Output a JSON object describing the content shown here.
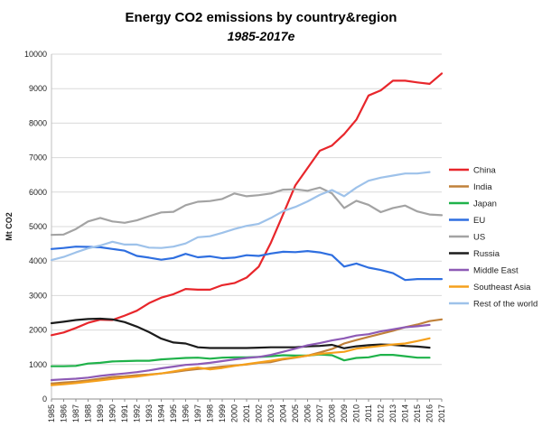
{
  "chart_data": {
    "type": "line",
    "title": "Energy CO2 emissions by country&region",
    "subtitle": "1985-2017e",
    "xlabel": "",
    "ylabel": "Mt CO2",
    "ylim": [
      0,
      10000
    ],
    "yticks": [
      0,
      1000,
      2000,
      3000,
      4000,
      5000,
      6000,
      7000,
      8000,
      9000,
      10000
    ],
    "grid": true,
    "legend_position": "right",
    "x": [
      "1985",
      "1986",
      "1987",
      "1988",
      "1989",
      "1990",
      "1991",
      "1992",
      "1993",
      "1994",
      "1995",
      "1996",
      "1997",
      "1998",
      "1999",
      "2000",
      "2001",
      "2002",
      "2003",
      "2004",
      "2005",
      "2006",
      "2007",
      "2008",
      "2009",
      "2010",
      "2011",
      "2012",
      "2013",
      "2014",
      "2015",
      "2016",
      "2017"
    ],
    "series": [
      {
        "name": "China",
        "color": "#e8262b",
        "values": [
          1850,
          1930,
          2060,
          2210,
          2300,
          2290,
          2420,
          2560,
          2780,
          2940,
          3040,
          3190,
          3170,
          3170,
          3300,
          3360,
          3520,
          3840,
          4540,
          5360,
          6200,
          6700,
          7200,
          7350,
          7680,
          8100,
          8800,
          8950,
          9230,
          9230,
          9180,
          9140,
          9440
        ]
      },
      {
        "name": "India",
        "color": "#c0813a",
        "values": [
          450,
          480,
          500,
          540,
          590,
          640,
          660,
          690,
          710,
          740,
          780,
          830,
          870,
          900,
          940,
          970,
          1000,
          1050,
          1070,
          1150,
          1200,
          1260,
          1350,
          1450,
          1610,
          1710,
          1800,
          1890,
          1980,
          2080,
          2160,
          2260,
          2310
        ]
      },
      {
        "name": "Japan",
        "color": "#1fb24a",
        "values": [
          950,
          950,
          960,
          1030,
          1050,
          1090,
          1100,
          1110,
          1110,
          1150,
          1170,
          1190,
          1200,
          1170,
          1200,
          1210,
          1210,
          1220,
          1240,
          1270,
          1260,
          1260,
          1290,
          1270,
          1120,
          1190,
          1210,
          1280,
          1280,
          1240,
          1200,
          1200,
          null
        ]
      },
      {
        "name": "EU",
        "color": "#2f6fe0",
        "values": [
          4350,
          4380,
          4420,
          4410,
          4400,
          4350,
          4300,
          4150,
          4100,
          4040,
          4090,
          4210,
          4110,
          4140,
          4080,
          4100,
          4170,
          4150,
          4220,
          4270,
          4260,
          4290,
          4250,
          4170,
          3840,
          3930,
          3810,
          3740,
          3650,
          3450,
          3480,
          3480,
          3480
        ]
      },
      {
        "name": "US",
        "color": "#a3a3a3",
        "values": [
          4760,
          4770,
          4930,
          5150,
          5250,
          5150,
          5110,
          5180,
          5300,
          5410,
          5430,
          5620,
          5720,
          5740,
          5800,
          5960,
          5880,
          5910,
          5960,
          6070,
          6080,
          6040,
          6130,
          5960,
          5540,
          5750,
          5630,
          5420,
          5540,
          5610,
          5440,
          5350,
          5330
        ]
      },
      {
        "name": "Russia",
        "color": "#1c1c1c",
        "values": [
          2200,
          2240,
          2290,
          2320,
          2330,
          2310,
          2230,
          2100,
          1940,
          1750,
          1640,
          1610,
          1500,
          1480,
          1480,
          1480,
          1480,
          1490,
          1500,
          1500,
          1500,
          1530,
          1540,
          1570,
          1470,
          1530,
          1560,
          1580,
          1570,
          1540,
          1520,
          1490,
          null
        ]
      },
      {
        "name": "Middle East",
        "color": "#8e5bb6",
        "values": [
          550,
          570,
          590,
          620,
          670,
          710,
          740,
          780,
          830,
          890,
          940,
          990,
          1010,
          1050,
          1100,
          1150,
          1190,
          1220,
          1280,
          1370,
          1460,
          1560,
          1620,
          1700,
          1760,
          1840,
          1880,
          1960,
          2020,
          2080,
          2110,
          2150,
          null
        ]
      },
      {
        "name": "Southeast Asia",
        "color": "#f5a01c",
        "values": [
          400,
          430,
          460,
          500,
          540,
          580,
          620,
          650,
          700,
          740,
          800,
          860,
          910,
          860,
          900,
          960,
          1010,
          1060,
          1110,
          1170,
          1210,
          1260,
          1310,
          1340,
          1370,
          1460,
          1500,
          1540,
          1580,
          1610,
          1680,
          1760,
          null
        ]
      },
      {
        "name": "Rest of the world",
        "color": "#9ec2ea",
        "values": [
          4030,
          4120,
          4250,
          4370,
          4450,
          4560,
          4480,
          4480,
          4390,
          4380,
          4420,
          4510,
          4690,
          4720,
          4820,
          4930,
          5020,
          5080,
          5250,
          5450,
          5570,
          5730,
          5920,
          6060,
          5880,
          6130,
          6330,
          6420,
          6480,
          6540,
          6540,
          6580,
          null
        ]
      }
    ]
  }
}
